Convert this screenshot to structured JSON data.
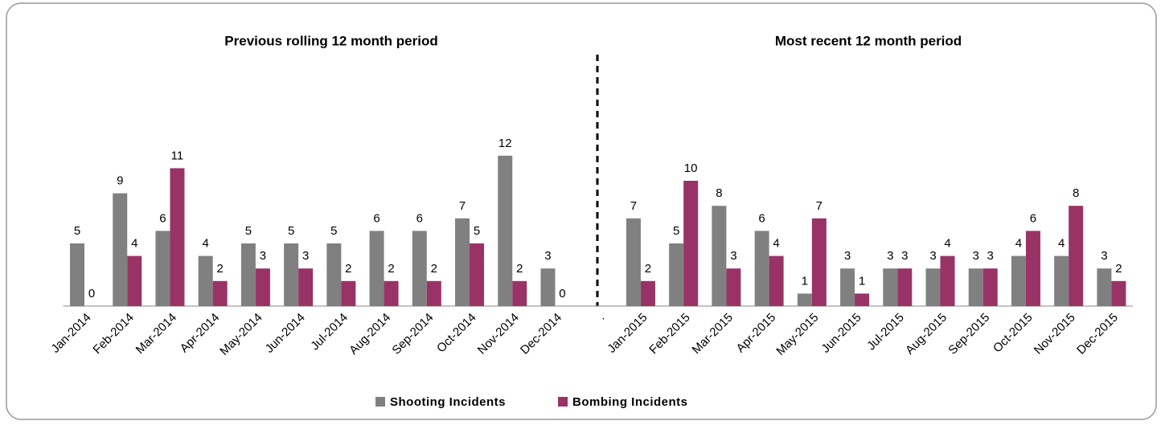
{
  "chart_data": {
    "type": "bar",
    "annotations": [
      "Previous rolling 12 month period",
      "Most recent 12 month period"
    ],
    "categories": [
      "Jan-2014",
      "Feb-2014",
      "Mar-2014",
      "Apr-2014",
      "May-2014",
      "Jun-2014",
      "Jul-2014",
      "Aug-2014",
      "Sep-2014",
      "Oct-2014",
      "Nov-2014",
      "Dec-2014",
      ".",
      "Jan-2015",
      "Feb-2015",
      "Mar-2015",
      "Apr-2015",
      "May-2015",
      "Jun-2015",
      "Jul-2015",
      "Aug-2015",
      "Sep-2015",
      "Oct-2015",
      "Nov-2015",
      "Dec-2015"
    ],
    "series": [
      {
        "name": "Shooting Incidents",
        "color": "#808080",
        "values": [
          5,
          9,
          6,
          4,
          5,
          5,
          5,
          6,
          6,
          7,
          12,
          3,
          null,
          7,
          5,
          8,
          6,
          1,
          3,
          3,
          3,
          3,
          4,
          4,
          3
        ]
      },
      {
        "name": "Bombing Incidents",
        "color": "#993366",
        "values": [
          0,
          4,
          11,
          2,
          3,
          3,
          2,
          2,
          2,
          5,
          2,
          0,
          null,
          2,
          10,
          3,
          4,
          7,
          1,
          3,
          4,
          3,
          6,
          8,
          2
        ]
      }
    ],
    "ylim": [
      0,
      14
    ],
    "legend": "bottom"
  }
}
